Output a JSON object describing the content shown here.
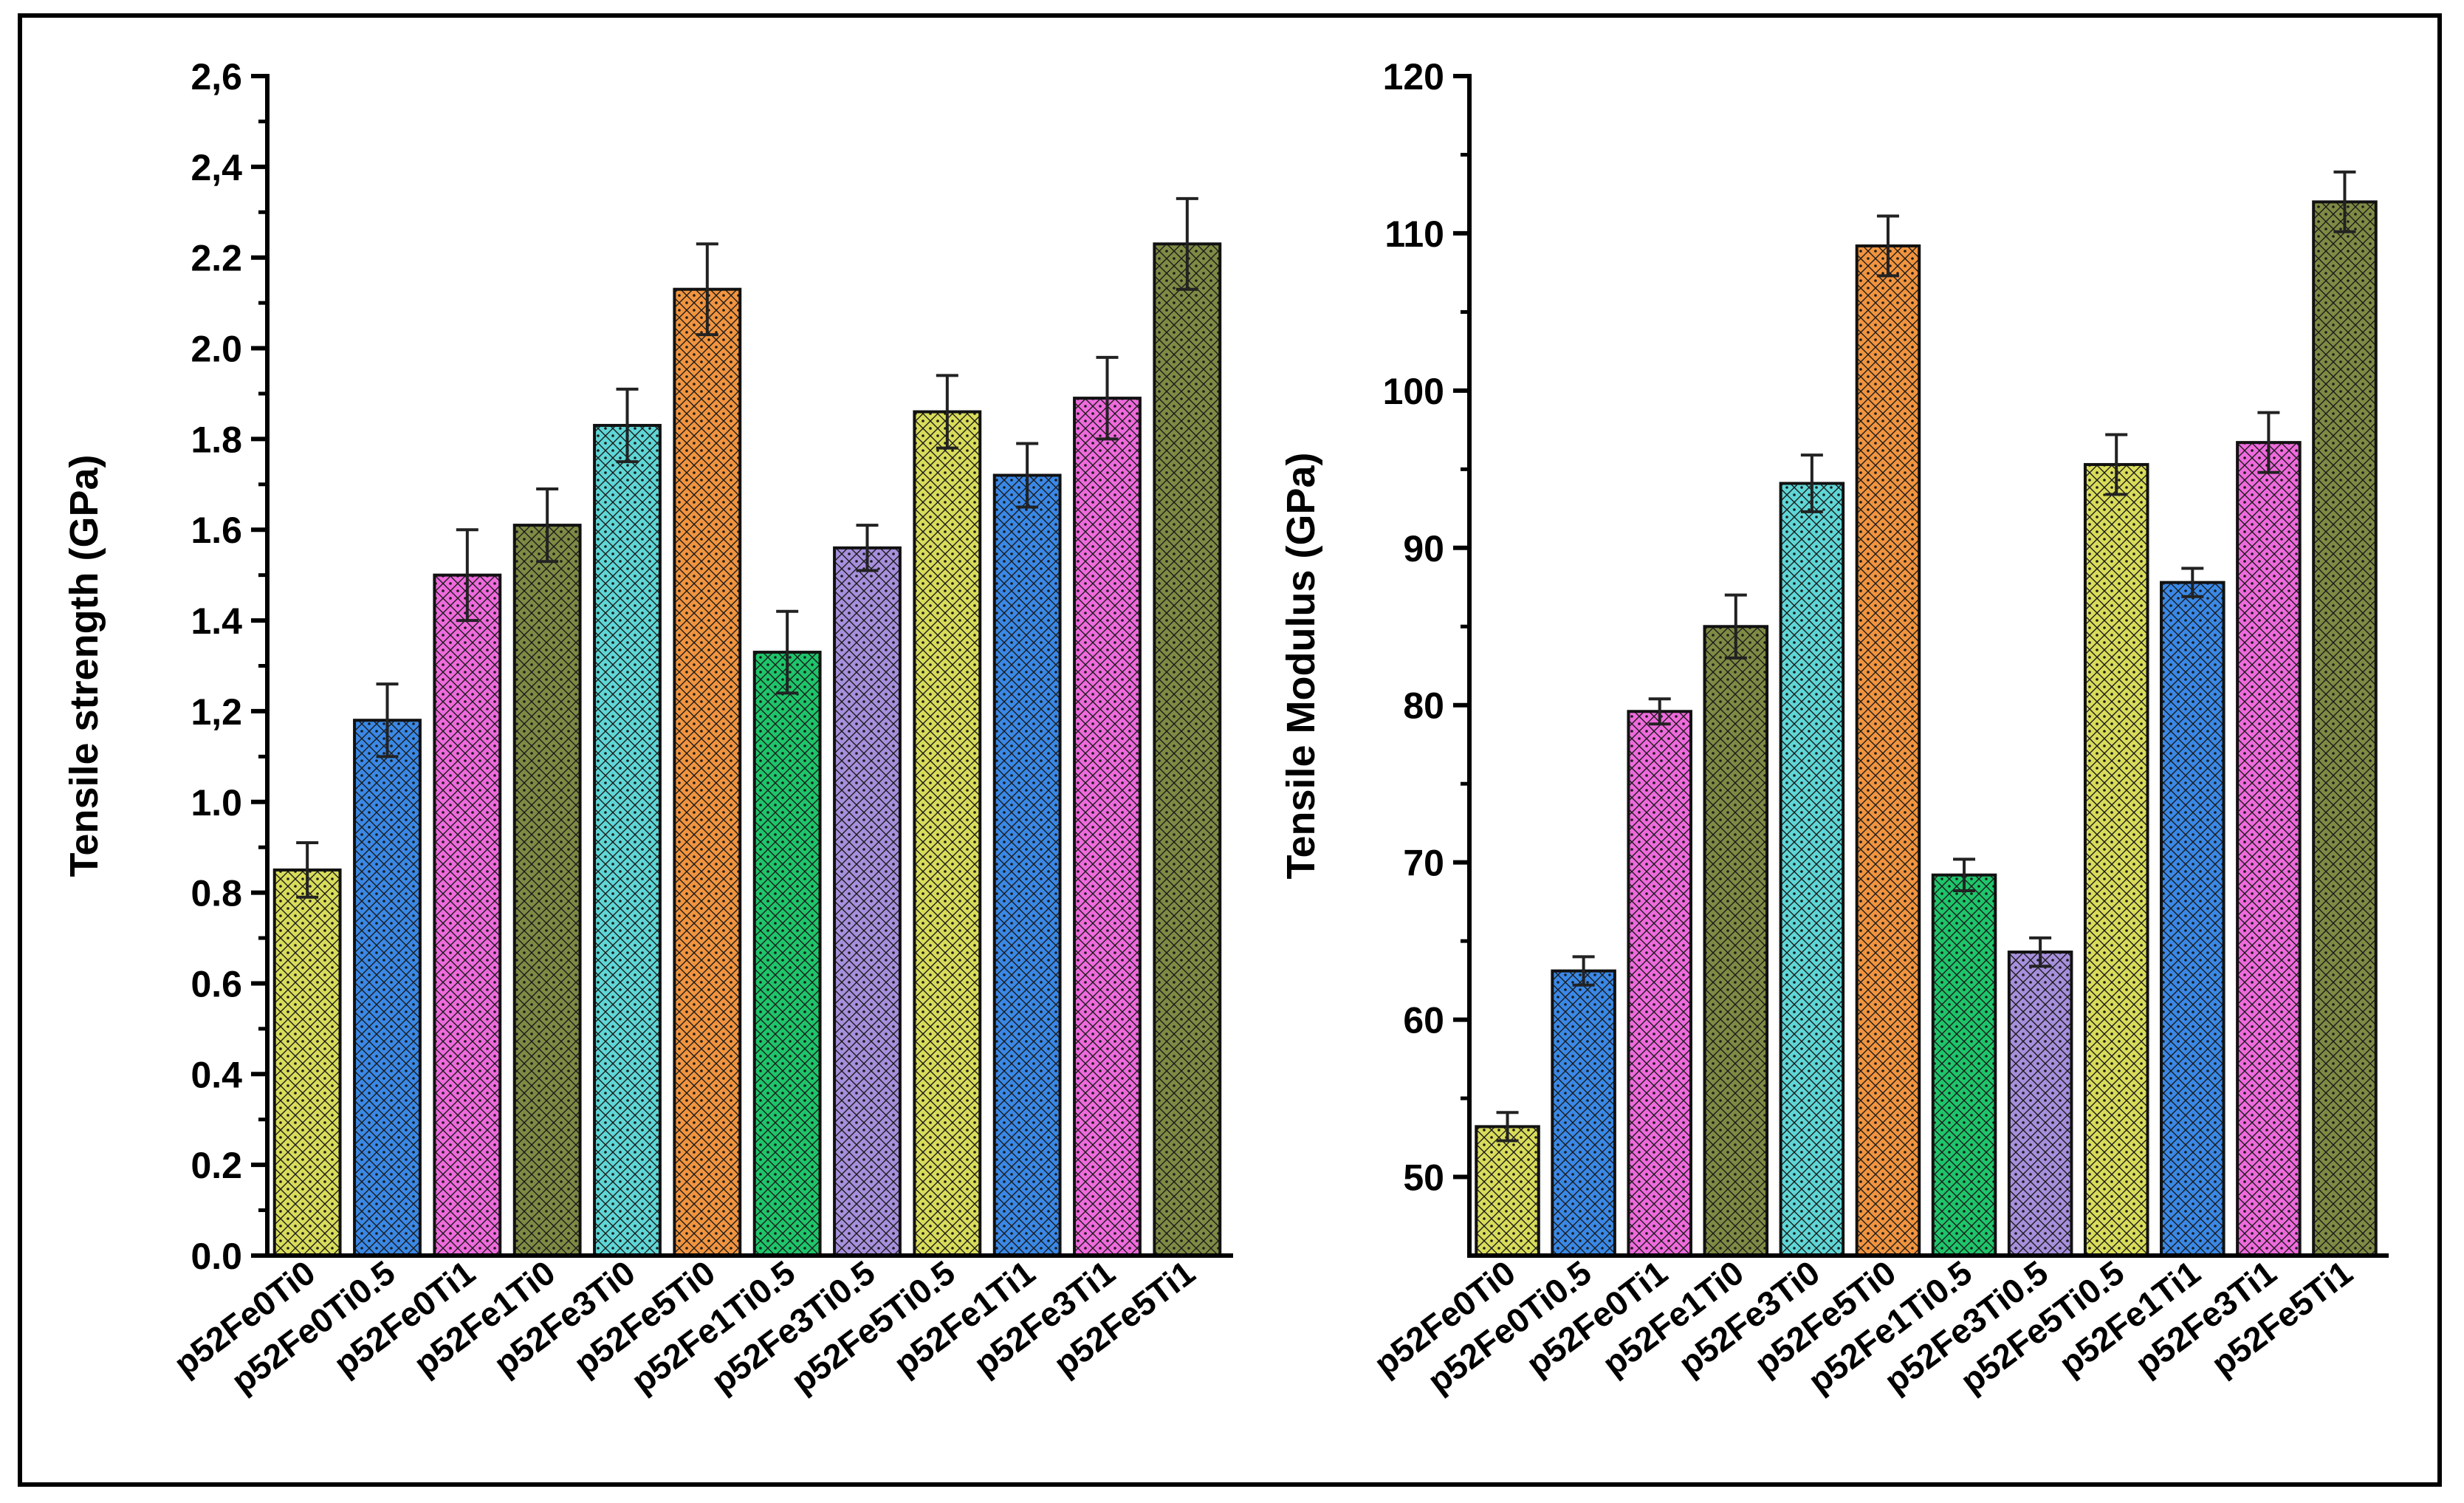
{
  "chart_data": [
    {
      "type": "bar",
      "title": "",
      "xlabel": "",
      "ylabel": "Tensile strength (GPa)",
      "categories": [
        "p52Fe0Ti0",
        "p52Fe0Ti0.5",
        "p52Fe0Ti1",
        "p52Fe1Ti0",
        "p52Fe3Ti0",
        "p52Fe5Ti0",
        "p52Fe1Ti0.5",
        "p52Fe3Ti0.5",
        "p52Fe5Ti0.5",
        "p52Fe1Ti1",
        "p52Fe3Ti1",
        "p52Fe5Ti1"
      ],
      "values": [
        0.85,
        1.18,
        1.5,
        1.61,
        1.83,
        2.13,
        1.33,
        1.56,
        1.86,
        1.72,
        1.89,
        2.23
      ],
      "errors": [
        0.06,
        0.08,
        0.1,
        0.08,
        0.08,
        0.1,
        0.09,
        0.05,
        0.08,
        0.07,
        0.09,
        0.1
      ],
      "ylim": [
        0,
        2.6
      ],
      "yticks": [
        {
          "value": 0.0,
          "label": "0.0"
        },
        {
          "value": 0.2,
          "label": "0.2"
        },
        {
          "value": 0.4,
          "label": "0.4"
        },
        {
          "value": 0.6,
          "label": "0.6"
        },
        {
          "value": 0.8,
          "label": "0.8"
        },
        {
          "value": 1.0,
          "label": "1.0"
        },
        {
          "value": 1.2,
          "label": "1,2"
        },
        {
          "value": 1.4,
          "label": "1.4"
        },
        {
          "value": 1.6,
          "label": "1.6"
        },
        {
          "value": 1.8,
          "label": "1.8"
        },
        {
          "value": 2.0,
          "label": "2.0"
        },
        {
          "value": 2.2,
          "label": "2.2"
        },
        {
          "value": 2.4,
          "label": "2,4"
        },
        {
          "value": 2.6,
          "label": "2,6"
        }
      ],
      "grid": false,
      "legend": "none"
    },
    {
      "type": "bar",
      "title": "",
      "xlabel": "",
      "ylabel": "Tensile Modulus (GPa)",
      "categories": [
        "p52Fe0Ti0",
        "p52Fe0Ti0.5",
        "p52Fe0Ti1",
        "p52Fe1Ti0",
        "p52Fe3Ti0",
        "p52Fe5Ti0",
        "p52Fe1Ti0.5",
        "p52Fe3Ti0.5",
        "p52Fe5Ti0.5",
        "p52Fe1Ti1",
        "p52Fe3Ti1",
        "p52Fe5Ti1"
      ],
      "values": [
        53.2,
        63.1,
        79.6,
        85.0,
        94.1,
        109.2,
        69.2,
        64.3,
        95.3,
        87.8,
        96.7,
        112.0
      ],
      "errors": [
        0.9,
        0.9,
        0.8,
        2.0,
        1.8,
        1.9,
        1.0,
        0.9,
        1.9,
        0.9,
        1.9,
        1.9
      ],
      "ylim": [
        45,
        120
      ],
      "yticks": [
        {
          "value": 50,
          "label": "50"
        },
        {
          "value": 60,
          "label": "60"
        },
        {
          "value": 70,
          "label": "70"
        },
        {
          "value": 80,
          "label": "80"
        },
        {
          "value": 90,
          "label": "90"
        },
        {
          "value": 100,
          "label": "100"
        },
        {
          "value": 110,
          "label": "110"
        },
        {
          "value": 120,
          "label": "120"
        }
      ],
      "grid": false,
      "legend": "none"
    }
  ],
  "colors": [
    "#d9dc5a",
    "#3a88e6",
    "#ee6adc",
    "#7f8a44",
    "#5fd6d6",
    "#f1943f",
    "#1ec56a",
    "#a68fdc",
    "#d9dc5a",
    "#3a88e6",
    "#ee6adc",
    "#7f8a44"
  ]
}
